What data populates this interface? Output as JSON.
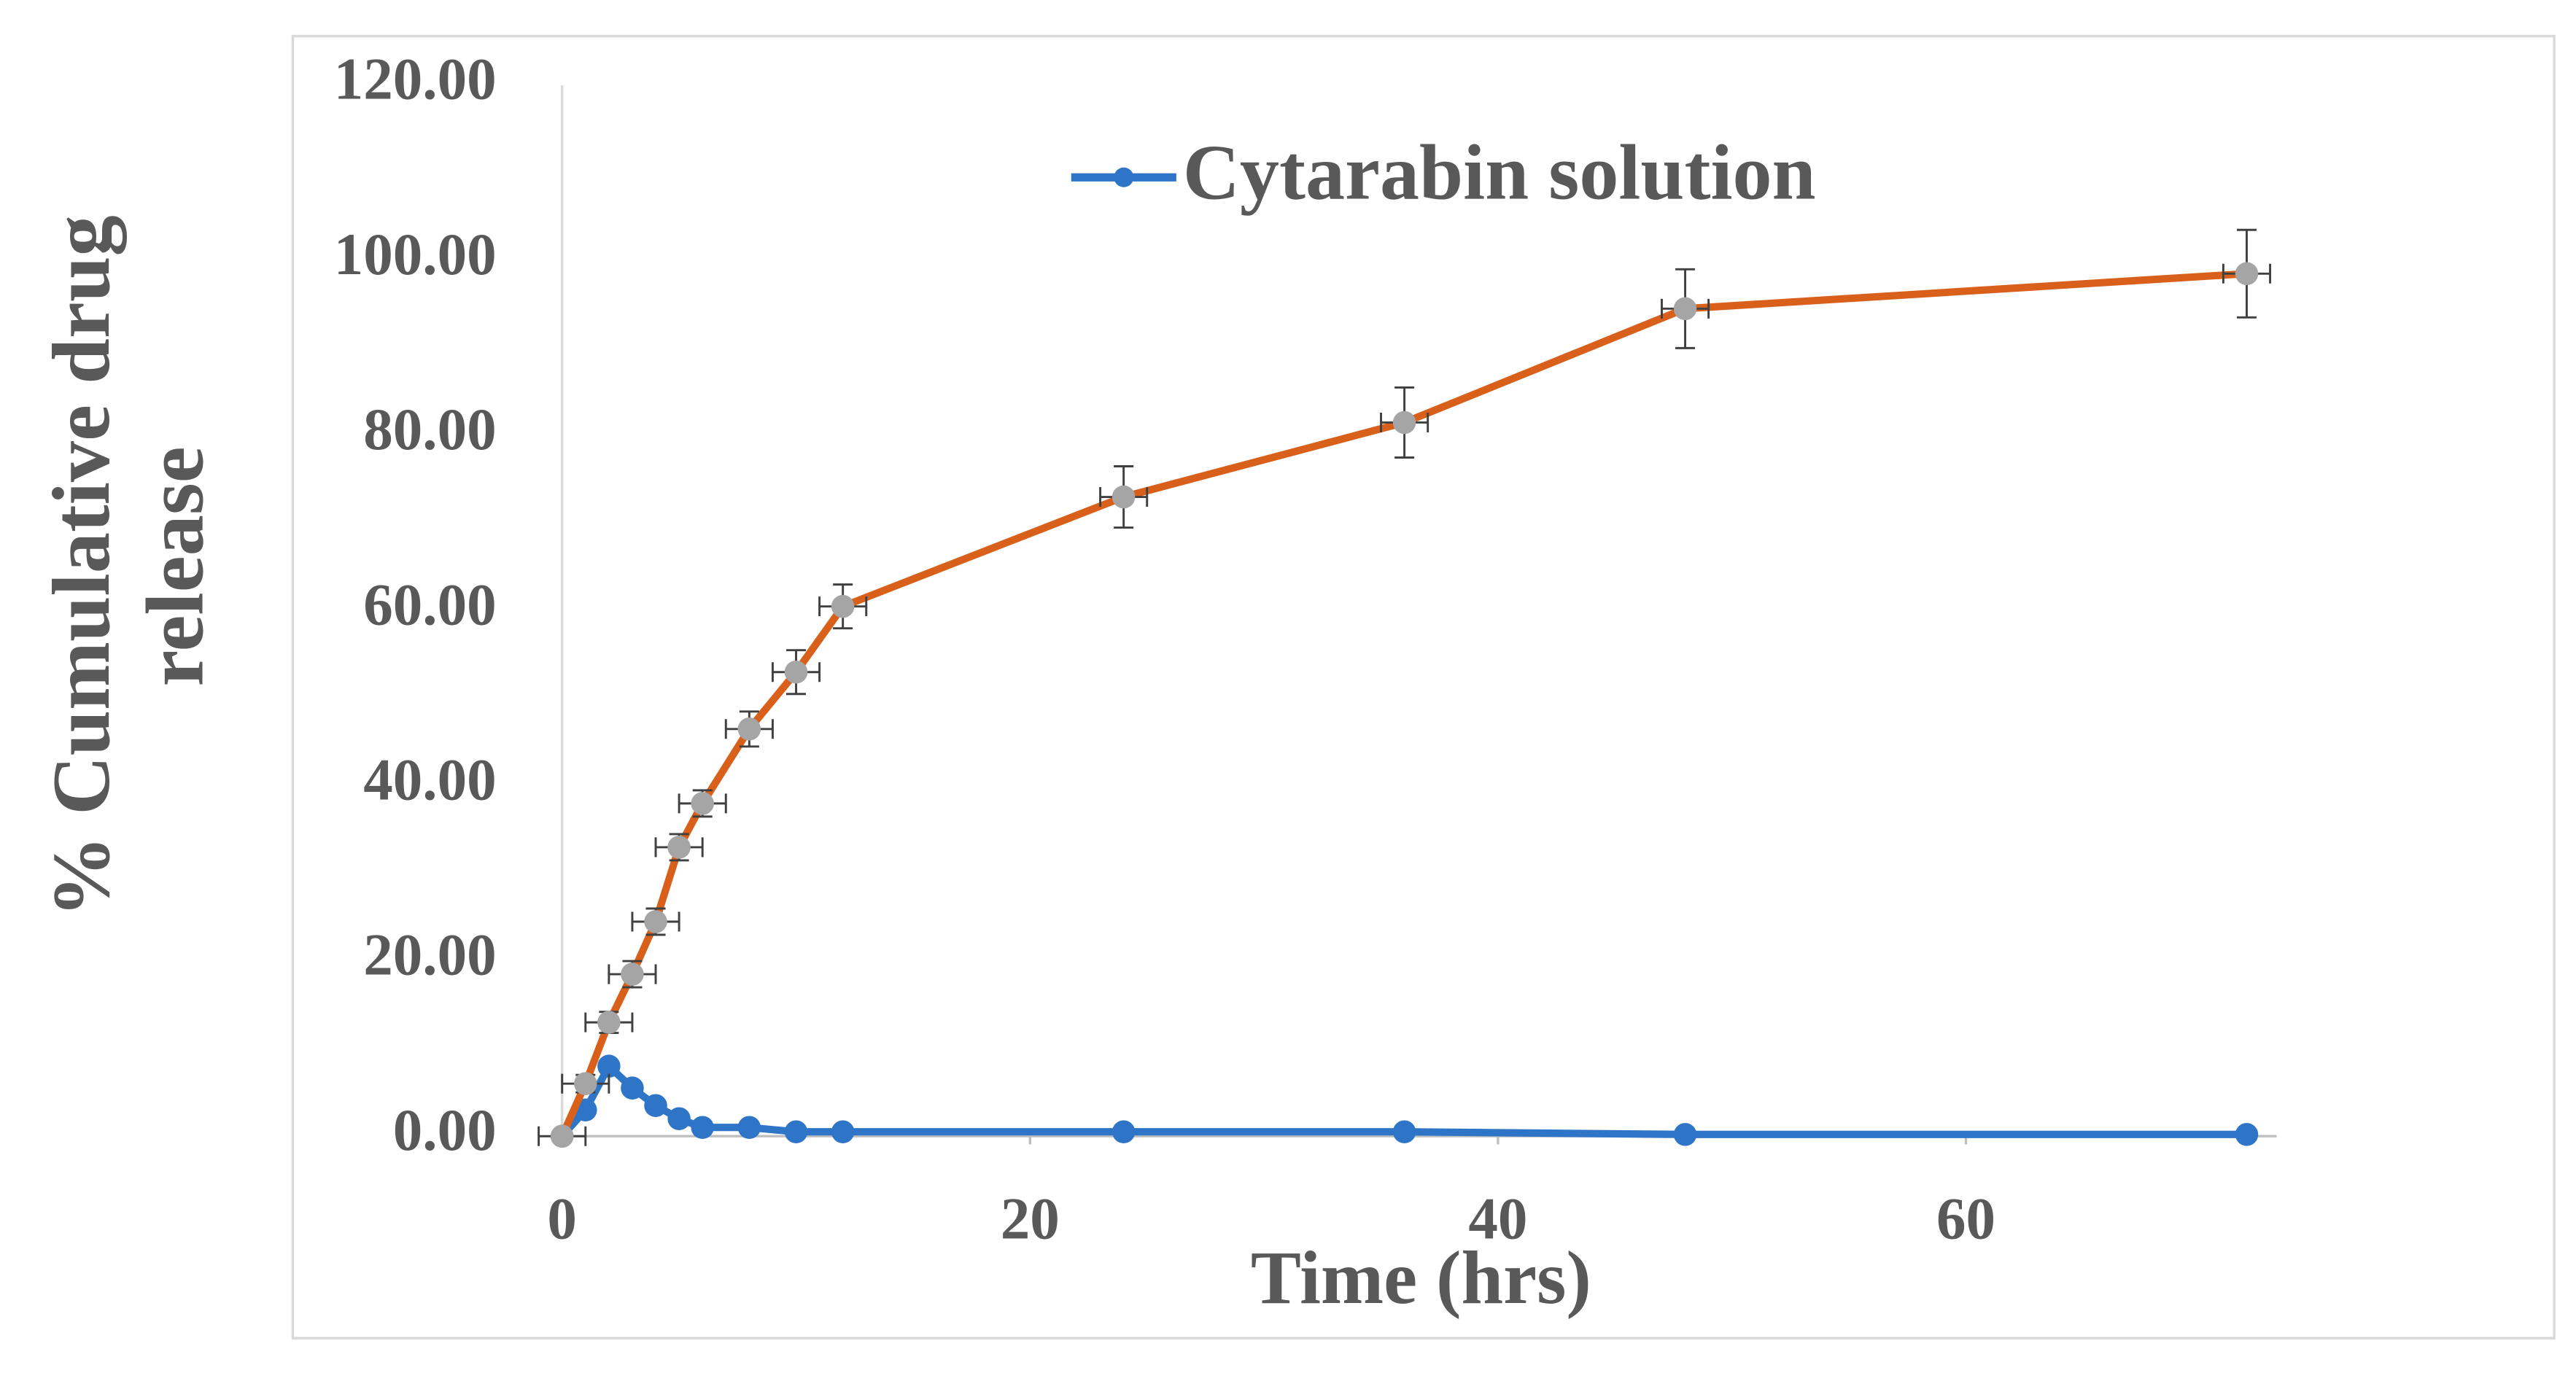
{
  "chart_data": {
    "type": "line",
    "xlabel": "Time (hrs)",
    "ylabel": "% Cumulative drug release",
    "x": [
      0,
      1,
      2,
      3,
      4,
      5,
      6,
      8,
      10,
      12,
      24,
      36,
      48,
      72
    ],
    "series": [
      {
        "name": "Cytarabin solution",
        "color": "#2e75c7",
        "marker_color": "#2e75c7",
        "values": [
          0,
          3,
          8,
          5.5,
          3.5,
          2,
          1,
          1,
          0.5,
          0.5,
          0.5,
          0.5,
          0.2,
          0.2
        ]
      },
      {
        "color": "#d9601b",
        "marker_color": "#a5a5a5",
        "values": [
          0,
          6,
          13,
          18.5,
          24.5,
          33,
          38,
          46.5,
          53,
          60.5,
          73,
          81.5,
          94.5,
          98.5
        ],
        "errors": [
          0.5,
          1,
          1.2,
          1.5,
          1.5,
          1.5,
          1.5,
          2,
          2.5,
          2.5,
          3.5,
          4,
          4.5,
          5
        ],
        "x_errors": [
          1,
          1,
          1,
          1,
          1,
          1,
          1,
          1,
          1,
          1,
          1,
          1,
          1,
          1
        ]
      }
    ],
    "xlim": [
      0,
      73
    ],
    "xticks": [
      0,
      20,
      40,
      60
    ],
    "ylim": [
      0,
      120
    ],
    "yticks": [
      {
        "value": 0,
        "label": "0.00"
      },
      {
        "value": 20,
        "label": "20.00"
      },
      {
        "value": 40,
        "label": "40.00"
      },
      {
        "value": 60,
        "label": "60.00"
      },
      {
        "value": 80,
        "label": "80.00"
      },
      {
        "value": 100,
        "label": "100.00"
      },
      {
        "value": 120,
        "label": "120.00"
      }
    ],
    "legend": "top"
  }
}
